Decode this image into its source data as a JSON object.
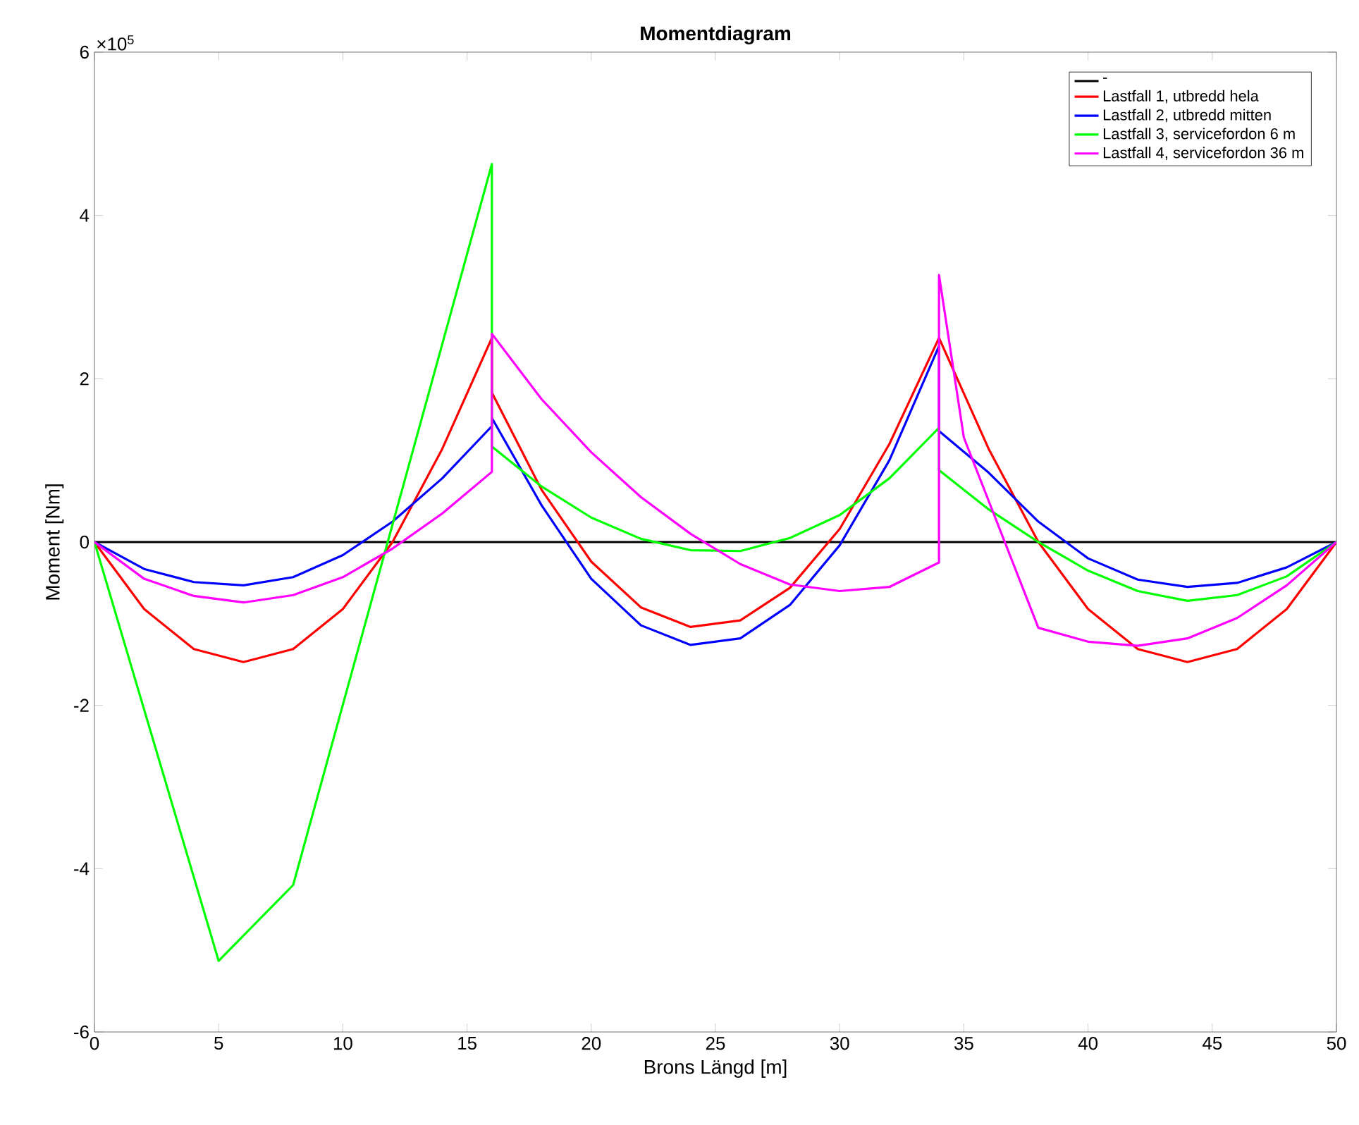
{
  "chart_data": {
    "type": "line",
    "title": "Momentdiagram",
    "xlabel": "Brons Längd [m]",
    "ylabel": "Moment [Nm]",
    "annotations": [
      "×10$^{5}$"
    ],
    "xlim": [
      0,
      50
    ],
    "ylim": [
      -6,
      6
    ],
    "xticks": [
      0,
      5,
      10,
      15,
      20,
      25,
      30,
      35,
      40,
      45,
      50
    ],
    "yticks": [
      -6,
      -4,
      -2,
      0,
      2,
      4,
      6
    ],
    "grid": false,
    "legend": "top right",
    "line_style": "solid",
    "marker": "none",
    "series": [
      {
        "name": "-",
        "color": "#000000",
        "x": [
          0,
          50
        ],
        "values": [
          0,
          0
        ]
      },
      {
        "name": "Lastfall 1, utbredd hela",
        "color": "#ff0000",
        "x": [
          0,
          2,
          4,
          6,
          8,
          10,
          12,
          14,
          16,
          16,
          18,
          20,
          22,
          24,
          26,
          28,
          30,
          32,
          34,
          36,
          38,
          40,
          42,
          44,
          46,
          48,
          50
        ],
        "values": [
          0,
          -0.82,
          -1.31,
          -1.47,
          -1.31,
          -0.82,
          0,
          1.14,
          2.5,
          1.83,
          0.64,
          -0.24,
          -0.8,
          -1.04,
          -0.96,
          -0.56,
          0.16,
          1.2,
          2.5,
          1.14,
          0,
          -0.82,
          -1.31,
          -1.47,
          -1.31,
          -0.82,
          0
        ]
      },
      {
        "name": "Lastfall 2, utbredd mitten",
        "color": "#0000ff",
        "x": [
          0,
          2,
          4,
          6,
          8,
          10,
          12,
          14,
          16,
          16,
          18,
          20,
          22,
          24,
          26,
          28,
          30,
          32,
          34,
          34,
          36,
          38,
          40,
          42,
          44,
          46,
          48,
          50
        ],
        "values": [
          0,
          -0.33,
          -0.49,
          -0.53,
          -0.43,
          -0.16,
          0.25,
          0.78,
          1.42,
          1.52,
          0.45,
          -0.45,
          -1.02,
          -1.26,
          -1.18,
          -0.77,
          -0.04,
          1.0,
          2.4,
          1.36,
          0.85,
          0.25,
          -0.2,
          -0.46,
          -0.55,
          -0.5,
          -0.31,
          0
        ]
      },
      {
        "name": "Lastfall 3, servicefordon 6 m",
        "color": "#00ff00",
        "x": [
          0,
          5,
          8,
          16,
          16,
          18,
          20,
          22,
          24,
          26,
          28,
          30,
          32,
          34,
          34,
          36,
          38,
          40,
          42,
          44,
          46,
          48,
          50
        ],
        "values": [
          0,
          -5.13,
          -4.2,
          4.63,
          1.17,
          0.68,
          0.3,
          0.04,
          -0.1,
          -0.11,
          0.05,
          0.33,
          0.78,
          1.4,
          0.88,
          0.4,
          0,
          -0.35,
          -0.6,
          -0.72,
          -0.65,
          -0.42,
          0
        ]
      },
      {
        "name": "Lastfall 4, servicefordon 36 m",
        "color": "#ff00ff",
        "x": [
          0,
          2,
          4,
          6,
          8,
          10,
          12,
          14,
          16,
          16,
          18,
          20,
          22,
          24,
          26,
          28,
          30,
          32,
          34,
          34,
          35,
          38,
          40,
          42,
          44,
          46,
          48,
          50
        ],
        "values": [
          0,
          -0.45,
          -0.66,
          -0.74,
          -0.65,
          -0.43,
          -0.08,
          0.35,
          0.86,
          2.55,
          1.75,
          1.1,
          0.55,
          0.1,
          -0.27,
          -0.52,
          -0.6,
          -0.55,
          -0.25,
          3.27,
          1.28,
          -1.05,
          -1.22,
          -1.27,
          -1.18,
          -0.93,
          -0.53,
          0
        ]
      }
    ]
  }
}
